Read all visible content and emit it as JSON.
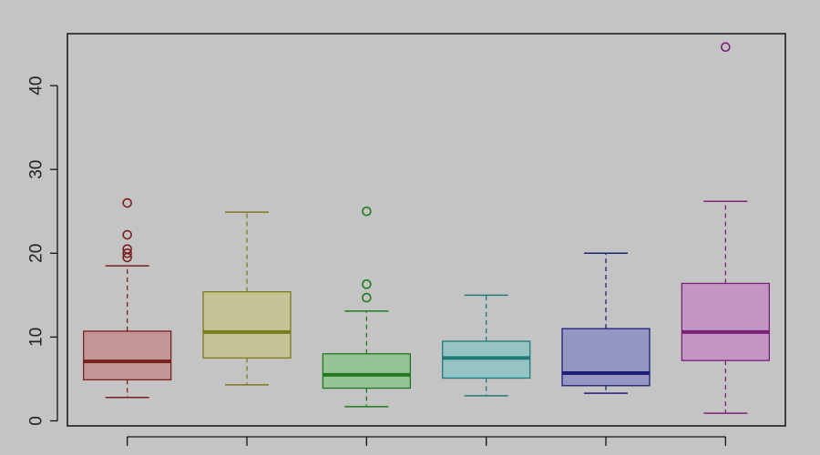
{
  "chart_data": {
    "type": "boxplot",
    "title": "",
    "xlabel": "",
    "ylabel": "",
    "ylim": [
      -0.6,
      46.2
    ],
    "yticks": [
      0,
      10,
      20,
      30,
      40
    ],
    "ytick_labels": [
      "0",
      "10",
      "20",
      "30",
      "40"
    ],
    "grid": false,
    "legend": "none",
    "series": [
      {
        "whisker_low": 2.8,
        "q1": 4.9,
        "median": 7.1,
        "q3": 10.7,
        "whisker_high": 18.5,
        "outliers": [
          19.5,
          20.0,
          20.5,
          22.2,
          26.0
        ],
        "fill": "#c39696",
        "stroke": "#7a1f1f"
      },
      {
        "whisker_low": 4.3,
        "q1": 7.5,
        "median": 10.6,
        "q3": 15.4,
        "whisker_high": 24.9,
        "outliers": [],
        "fill": "#c3c395",
        "stroke": "#7a7a1f"
      },
      {
        "whisker_low": 1.7,
        "q1": 3.9,
        "median": 5.5,
        "q3": 8.0,
        "whisker_high": 13.1,
        "outliers": [
          14.7,
          16.3,
          25.0
        ],
        "fill": "#96c396",
        "stroke": "#1f7a1f"
      },
      {
        "whisker_low": 3.0,
        "q1": 5.1,
        "median": 7.5,
        "q3": 9.5,
        "whisker_high": 15.0,
        "outliers": [],
        "fill": "#96c3c3",
        "stroke": "#1f7a7a"
      },
      {
        "whisker_low": 3.3,
        "q1": 4.2,
        "median": 5.7,
        "q3": 11.0,
        "whisker_high": 20.0,
        "outliers": [],
        "fill": "#9696c3",
        "stroke": "#1f1f7a"
      },
      {
        "whisker_low": 0.9,
        "q1": 7.2,
        "median": 10.6,
        "q3": 16.4,
        "whisker_high": 26.2,
        "outliers": [
          44.6
        ],
        "fill": "#c396c3",
        "stroke": "#7a1f7a"
      }
    ]
  }
}
